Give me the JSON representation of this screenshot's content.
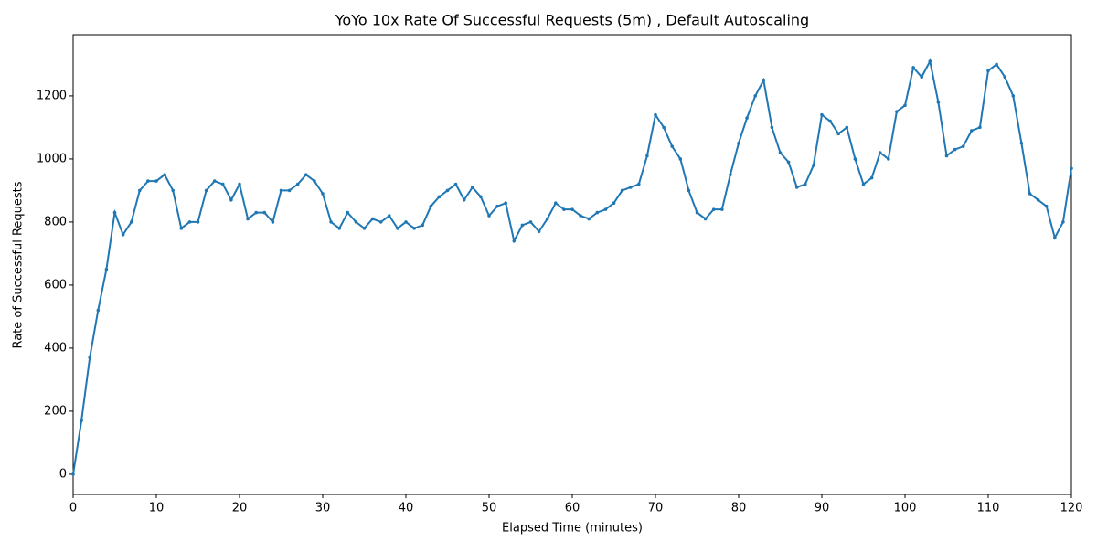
{
  "chart_data": {
    "type": "line",
    "title": "YoYo 10x Rate Of Successful Requests (5m) , Default Autoscaling",
    "x_label": "Elapsed Time (minutes)",
    "y_label": "Rate of Successful Requests",
    "x": [
      0,
      1,
      2,
      3,
      4,
      5,
      6,
      7,
      8,
      9,
      10,
      11,
      12,
      13,
      14,
      15,
      16,
      17,
      18,
      19,
      20,
      21,
      22,
      23,
      24,
      25,
      26,
      27,
      28,
      29,
      30,
      31,
      32,
      33,
      34,
      35,
      36,
      37,
      38,
      39,
      40,
      41,
      42,
      43,
      44,
      45,
      46,
      47,
      48,
      49,
      50,
      51,
      52,
      53,
      54,
      55,
      56,
      57,
      58,
      59,
      60,
      61,
      62,
      63,
      64,
      65,
      66,
      67,
      68,
      69,
      70,
      71,
      72,
      73,
      74,
      75,
      76,
      77,
      78,
      79,
      80,
      81,
      82,
      83,
      84,
      85,
      86,
      87,
      88,
      89,
      90,
      91,
      92,
      93,
      94,
      95,
      96,
      97,
      98,
      99,
      100,
      101,
      102,
      103,
      104,
      105,
      106,
      107,
      108,
      109,
      110,
      111,
      112,
      113,
      114,
      115,
      116,
      117,
      118,
      119,
      120
    ],
    "series": [
      {
        "name": "Rate of Successful Requests",
        "color": "#1f77b4",
        "values": [
          0,
          170,
          370,
          520,
          650,
          830,
          760,
          800,
          900,
          930,
          930,
          950,
          900,
          780,
          800,
          800,
          900,
          930,
          920,
          870,
          920,
          810,
          830,
          830,
          800,
          900,
          900,
          920,
          950,
          930,
          890,
          800,
          780,
          830,
          800,
          780,
          810,
          800,
          820,
          780,
          800,
          780,
          790,
          850,
          880,
          900,
          920,
          870,
          910,
          880,
          820,
          850,
          860,
          740,
          790,
          800,
          770,
          810,
          860,
          840,
          840,
          820,
          810,
          830,
          840,
          860,
          900,
          910,
          920,
          1010,
          1140,
          1100,
          1040,
          1000,
          900,
          830,
          810,
          840,
          840,
          950,
          1050,
          1130,
          1200,
          1250,
          1100,
          1020,
          990,
          910,
          920,
          980,
          1140,
          1120,
          1080,
          1100,
          1000,
          920,
          940,
          1020,
          1000,
          1150,
          1170,
          1290,
          1260,
          1310,
          1180,
          1010,
          1030,
          1040,
          1090,
          1100,
          1280,
          1300,
          1260,
          1200,
          1050,
          890,
          870,
          850,
          750,
          800,
          970
        ]
      }
    ],
    "xlim": [
      0,
      120
    ],
    "xticks": [
      0,
      10,
      20,
      30,
      40,
      50,
      60,
      70,
      80,
      90,
      100,
      110,
      120
    ],
    "ylim": [
      -64,
      1394
    ],
    "yticks": [
      0,
      200,
      400,
      600,
      800,
      1000,
      1200
    ]
  }
}
